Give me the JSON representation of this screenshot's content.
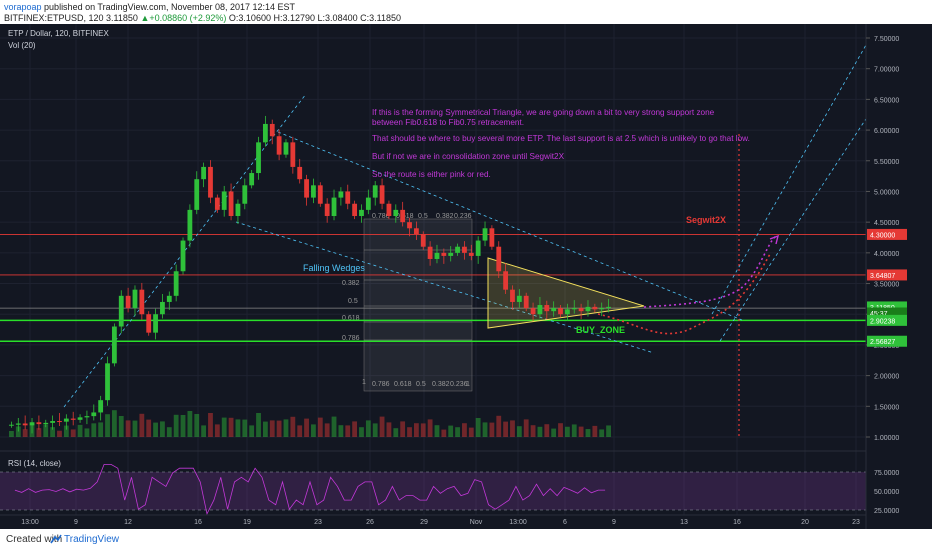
{
  "header": {
    "user": "vorapoap",
    "published_text": "published on TradingView.com, November 08, 2017 12:14 EST",
    "symbol": "BITFINEX:ETPUSD, 120",
    "price": "3.11850",
    "change": "▲+0.08860 (+2.92%)",
    "open": "O:3.10600",
    "high": "H:3.12790",
    "low": "L:3.08400",
    "close": "C:3.11850"
  },
  "legend": {
    "pair": "ETP / Dollar, 120, BITFINEX",
    "volume": "Vol (20)",
    "rsi": "RSI (14, close)"
  },
  "annotations": {
    "note_line1": "If this is the forming Symmetrical Triangle, we are going down a bit to very strong support zone",
    "note_line2": "between Fib0.618 to Fib0.75 retracement.",
    "note_line3": "That should be where to buy several more ETP. The last support is at 2.5 which is unlikely to go that low.",
    "note_line4": "But if not we are in consolidation zone until Segwit2X",
    "note_line5": "So the route is either pink or red.",
    "falling_wedges": "Falling Wedges",
    "buy_zone": "BUY_ZONE",
    "segwit": "Segwit2X",
    "fib_labels": [
      "0.786",
      "0.618",
      "0.5",
      "0.382",
      "0.236",
      "0.382",
      "0.5",
      "0.618",
      "0.786",
      "1",
      "0.786",
      "0.618",
      "0.5",
      "0.382",
      "0.236",
      "1"
    ]
  },
  "colors": {
    "background": "#131722",
    "up": "#2fc13a",
    "down": "#e53935",
    "trendline": "#4fc3f7",
    "annotation": "#c238d8",
    "green_line": "#29e02a",
    "red_line": "#e53935",
    "triangle": "#f5e15c"
  },
  "footer": {
    "created": "Created with",
    "brand": "TradingView"
  },
  "chart_data": {
    "type": "candlestick",
    "title": "ETP / Dollar, 120, BITFINEX",
    "y_axis_ticks": [
      "7.50000",
      "7.00000",
      "6.50000",
      "6.00000",
      "5.50000",
      "5.00000",
      "4.50000",
      "4.00000",
      "3.50000",
      "3.00000",
      "2.50000",
      "2.00000",
      "1.50000",
      "1.00000"
    ],
    "rsi_ticks": [
      "75.0000",
      "50.0000",
      "25.0000"
    ],
    "x_axis_ticks": [
      "13:00",
      "9",
      "12",
      "16",
      "19",
      "23",
      "26",
      "29",
      "Nov",
      "13:00",
      "6",
      "9",
      "13",
      "16",
      "20",
      "23"
    ],
    "ylim": [
      0.7,
      7.8
    ],
    "price_labels": [
      {
        "value": 4.3,
        "label": "4.30000",
        "color": "#e53935"
      },
      {
        "value": 3.64,
        "label": "3.64807",
        "color": "#e53935"
      },
      {
        "value": 3.1185,
        "label": "3.11850",
        "color": "#2fc13a"
      },
      {
        "value": 3.02,
        "label": "45:37",
        "color": "#1a7d1a"
      },
      {
        "value": 2.9,
        "label": "2.90238",
        "color": "#2fc13a"
      },
      {
        "value": 2.56,
        "label": "2.56827",
        "color": "#2fc13a"
      }
    ],
    "horizontal_levels": [
      {
        "value": 4.3,
        "color": "red"
      },
      {
        "value": 3.64,
        "color": "red"
      },
      {
        "value": 3.1,
        "color": "gray"
      },
      {
        "value": 2.9,
        "color": "green"
      },
      {
        "value": 2.56,
        "color": "green"
      }
    ],
    "price_path": [
      1.2,
      1.22,
      1.19,
      1.24,
      1.21,
      1.23,
      1.26,
      1.25,
      1.3,
      1.28,
      1.32,
      1.34,
      1.4,
      1.6,
      2.2,
      2.8,
      3.3,
      3.1,
      3.4,
      3.0,
      2.7,
      3.0,
      3.2,
      3.3,
      3.7,
      4.2,
      4.7,
      5.2,
      5.4,
      4.9,
      4.7,
      5.0,
      4.6,
      4.8,
      5.1,
      5.3,
      5.8,
      6.1,
      5.9,
      5.6,
      5.8,
      5.4,
      5.2,
      4.9,
      5.1,
      4.8,
      4.6,
      4.9,
      5.0,
      4.8,
      4.6,
      4.7,
      4.9,
      5.1,
      4.8,
      4.6,
      4.7,
      4.5,
      4.4,
      4.3,
      4.1,
      3.9,
      4.0,
      3.95,
      4.0,
      4.1,
      4.0,
      3.95,
      4.2,
      4.4,
      4.1,
      3.7,
      3.4,
      3.2,
      3.3,
      3.1,
      3.0,
      3.15,
      3.05,
      3.1,
      3.0,
      3.08,
      3.1,
      3.05,
      3.12,
      3.08,
      3.1,
      3.12
    ]
  }
}
